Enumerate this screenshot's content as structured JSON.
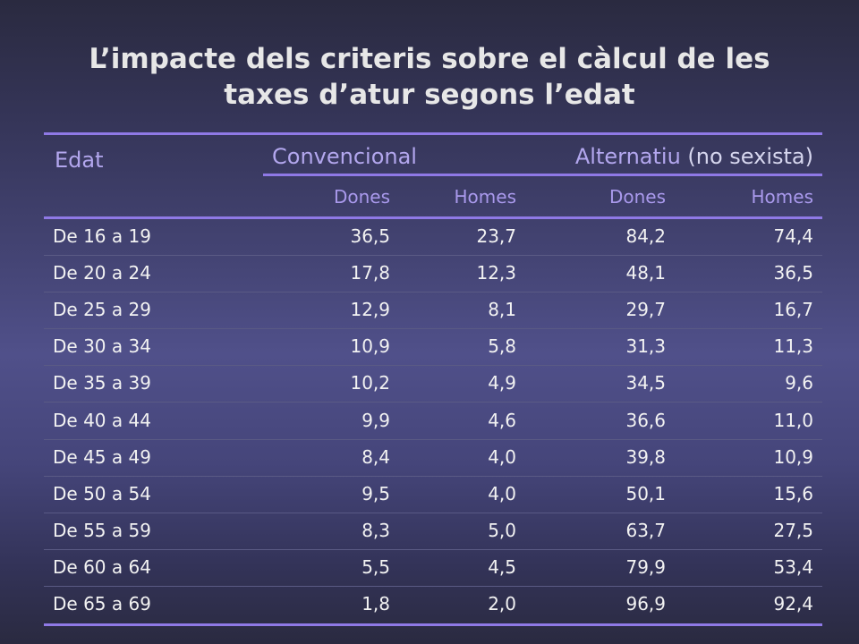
{
  "title": {
    "line1": "L’impacte dels criteris sobre el càlcul de les",
    "line2": "taxes d’atur segons l’edat"
  },
  "table": {
    "col_edat": "Edat",
    "group_conventional": "Convencional",
    "group_alternative_main": "Alternatiu",
    "group_alternative_paren": " (no sexista)",
    "subheaders": [
      "Dones",
      "Homes",
      "Dones",
      "Homes"
    ],
    "rows": [
      {
        "label": "De 16 a 19",
        "values": [
          "36,5",
          "23,7",
          "84,2",
          "74,4"
        ]
      },
      {
        "label": "De 20 a 24",
        "values": [
          "17,8",
          "12,3",
          "48,1",
          "36,5"
        ]
      },
      {
        "label": "De 25 a 29",
        "values": [
          "12,9",
          "8,1",
          "29,7",
          "16,7"
        ]
      },
      {
        "label": "De 30 a 34",
        "values": [
          "10,9",
          "5,8",
          "31,3",
          "11,3"
        ]
      },
      {
        "label": "De 35 a 39",
        "values": [
          "10,2",
          "4,9",
          "34,5",
          "9,6"
        ]
      },
      {
        "label": "De 40 a 44",
        "values": [
          "9,9",
          "4,6",
          "36,6",
          "11,0"
        ]
      },
      {
        "label": "De 45 a 49",
        "values": [
          "8,4",
          "4,0",
          "39,8",
          "10,9"
        ]
      },
      {
        "label": "De 50 a 54",
        "values": [
          "9,5",
          "4,0",
          "50,1",
          "15,6"
        ]
      },
      {
        "label": "De 55 a 59",
        "values": [
          "8,3",
          "5,0",
          "63,7",
          "27,5"
        ]
      },
      {
        "label": "De 60 a 64",
        "values": [
          "5,5",
          "4,5",
          "79,9",
          "53,4"
        ]
      },
      {
        "label": "De 65 a 69",
        "values": [
          "1,8",
          "2,0",
          "96,9",
          "92,4"
        ]
      }
    ]
  },
  "colors": {
    "rule": "#8f79e6",
    "header_text": "#b3a7ee",
    "body_text": "#f2f2f2"
  }
}
